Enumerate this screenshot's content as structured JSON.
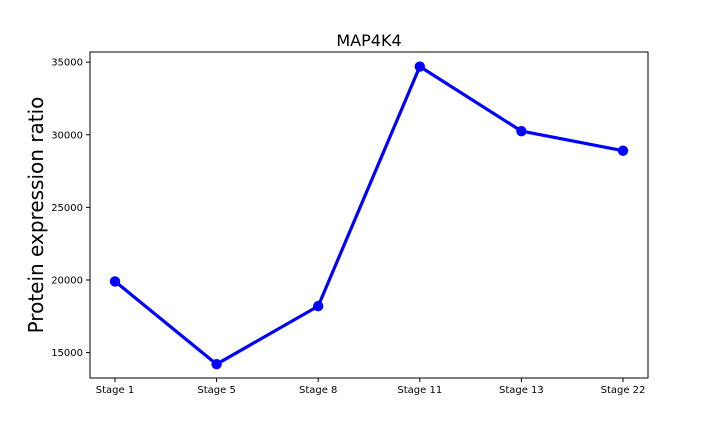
{
  "chart_data": {
    "type": "line",
    "title": "MAP4K4",
    "xlabel": "",
    "ylabel": "Protein expression ratio",
    "categories": [
      "Stage 1",
      "Stage 5",
      "Stage 8",
      "Stage 11",
      "Stage 13",
      "Stage 22"
    ],
    "series": [
      {
        "values": [
          19900,
          14200,
          18200,
          34700,
          30250,
          28900
        ],
        "color": "#0000ff",
        "marker": "circle"
      }
    ],
    "ylim": [
      13250,
      35700
    ],
    "yticks": [
      15000,
      20000,
      25000,
      30000,
      35000
    ],
    "ytick_labels": [
      "15000",
      "20000",
      "25000",
      "30000",
      "35000"
    ],
    "grid": false,
    "legend": "none"
  }
}
